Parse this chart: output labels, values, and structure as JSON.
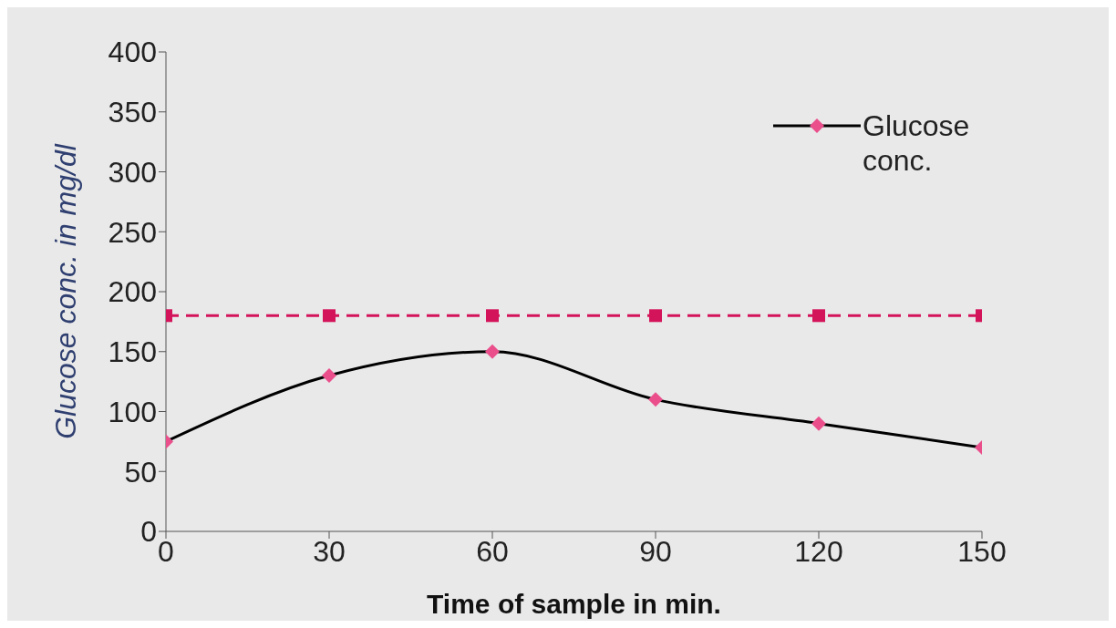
{
  "chart_data": {
    "type": "line",
    "xlabel": "Time of sample in min.",
    "ylabel": "Glucose conc. in mg/dl",
    "x": [
      0,
      30,
      60,
      90,
      120,
      150
    ],
    "series": [
      {
        "name": "Glucose conc.",
        "color": "#000000",
        "colors": [
          "#ea4f8c",
          "#ea4f8c",
          "#ea4f8c",
          "#ea4f8c",
          "#ea4f8c",
          "#ea4f8c"
        ],
        "values": [
          75,
          130,
          150,
          110,
          90,
          70
        ],
        "marker": "diamond",
        "line_style": "solid"
      },
      {
        "color": "#d4145a",
        "values": [
          180,
          180,
          180,
          180,
          180,
          180
        ],
        "marker": "square",
        "line_style": "dashed"
      }
    ],
    "xlim": [
      0,
      150
    ],
    "xticks": [
      0,
      30,
      60,
      90,
      120,
      150
    ],
    "ylim": [
      0,
      400
    ],
    "yticks": [
      0,
      50,
      100,
      150,
      200,
      250,
      300,
      350,
      400
    ],
    "grid": false,
    "legend": "top right"
  }
}
